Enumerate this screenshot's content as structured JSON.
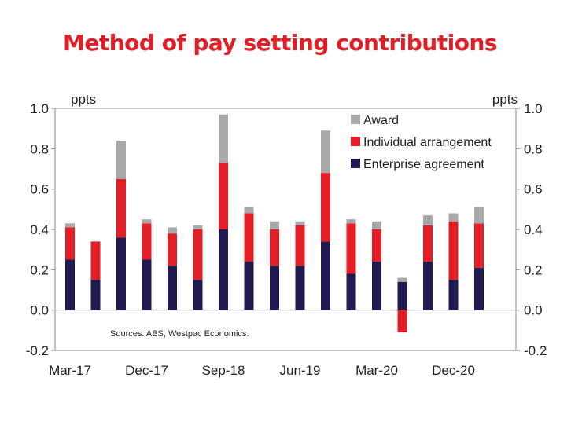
{
  "chart_data": {
    "type": "bar",
    "stacked": true,
    "title": "Method of pay setting contributions",
    "ylabel_left": "ppts",
    "ylabel_right": "ppts",
    "ylim": [
      -0.2,
      1.0
    ],
    "yticks": [
      1.0,
      0.8,
      0.6,
      0.4,
      0.2,
      0.0,
      -0.2
    ],
    "ytick_labels": [
      "1.0",
      "0.8",
      "0.6",
      "0.4",
      "0.2",
      "0.0",
      "-0.2"
    ],
    "categories": [
      "Mar-17",
      "Jun-17",
      "Sep-17",
      "Dec-17",
      "Mar-18",
      "Jun-18",
      "Sep-18",
      "Dec-18",
      "Mar-19",
      "Jun-19",
      "Sep-19",
      "Dec-19",
      "Mar-20",
      "Jun-20",
      "Sep-20",
      "Dec-20",
      "Mar-21"
    ],
    "xtick_labels": [
      {
        "index": 0,
        "label": "Mar-17"
      },
      {
        "index": 3,
        "label": "Dec-17"
      },
      {
        "index": 6,
        "label": "Sep-18"
      },
      {
        "index": 9,
        "label": "Jun-19"
      },
      {
        "index": 12,
        "label": "Mar-20"
      },
      {
        "index": 15,
        "label": "Dec-20"
      }
    ],
    "series": [
      {
        "name": "Enterprise agreement",
        "color": "#1f1a4f",
        "values": [
          0.25,
          0.15,
          0.36,
          0.25,
          0.22,
          0.15,
          0.4,
          0.24,
          0.22,
          0.22,
          0.34,
          0.18,
          0.24,
          0.14,
          0.24,
          0.15,
          0.21
        ]
      },
      {
        "name": "Individual arrangement",
        "color": "#e21f26",
        "values": [
          0.16,
          0.19,
          0.29,
          0.18,
          0.16,
          0.25,
          0.33,
          0.24,
          0.18,
          0.2,
          0.34,
          0.25,
          0.16,
          -0.11,
          0.18,
          0.29,
          0.22
        ]
      },
      {
        "name": "Award",
        "color": "#a9a9a9",
        "values": [
          0.02,
          0.0,
          0.19,
          0.02,
          0.03,
          0.02,
          0.24,
          0.03,
          0.04,
          0.02,
          0.21,
          0.02,
          0.04,
          0.02,
          0.05,
          0.04,
          0.08
        ]
      }
    ],
    "legend": {
      "position": "top-right",
      "order": [
        "Award",
        "Individual arrangement",
        "Enterprise agreement"
      ]
    },
    "annotation": "Sources: ABS, Westpac Economics.",
    "grid": false
  }
}
